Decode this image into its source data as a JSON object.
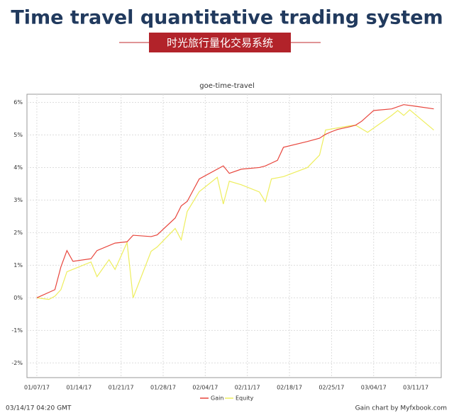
{
  "header": {
    "title": "Time travel quantitative trading system",
    "banner": "时光旅行量化交易系统"
  },
  "chart_data": {
    "type": "line",
    "title": "goe-time-travel",
    "grid": true,
    "legend": "bottom",
    "xlim": [
      "2017-01-05",
      "2017-03-15"
    ],
    "xticks": [
      {
        "value": "2017-01-07",
        "label": "01/07/17"
      },
      {
        "value": "2017-01-14",
        "label": "01/14/17"
      },
      {
        "value": "2017-01-21",
        "label": "01/21/17"
      },
      {
        "value": "2017-01-28",
        "label": "01/28/17"
      },
      {
        "value": "2017-02-04",
        "label": "02/04/17"
      },
      {
        "value": "2017-02-11",
        "label": "02/11/17"
      },
      {
        "value": "2017-02-18",
        "label": "02/18/17"
      },
      {
        "value": "2017-02-25",
        "label": "02/25/17"
      },
      {
        "value": "2017-03-04",
        "label": "03/04/17"
      },
      {
        "value": "2017-03-11",
        "label": "03/11/17"
      }
    ],
    "ylim": [
      -2.45,
      6.25
    ],
    "yticks": [
      {
        "value": -2,
        "label": "-2%"
      },
      {
        "value": -1,
        "label": "-1%"
      },
      {
        "value": 0,
        "label": "0%"
      },
      {
        "value": 1,
        "label": "1%"
      },
      {
        "value": 2,
        "label": "2%"
      },
      {
        "value": 3,
        "label": "3%"
      },
      {
        "value": 4,
        "label": "4%"
      },
      {
        "value": 5,
        "label": "5%"
      },
      {
        "value": 6,
        "label": "6%"
      }
    ],
    "series": [
      {
        "name": "Gain",
        "color": "#e8453c",
        "x": [
          "2017-01-07",
          "2017-01-10",
          "2017-01-11",
          "2017-01-12",
          "2017-01-13",
          "2017-01-16",
          "2017-01-17",
          "2017-01-20",
          "2017-01-22",
          "2017-01-23",
          "2017-01-26",
          "2017-01-27",
          "2017-01-30",
          "2017-01-31",
          "2017-02-01",
          "2017-02-03",
          "2017-02-07",
          "2017-02-08",
          "2017-02-10",
          "2017-02-13",
          "2017-02-14",
          "2017-02-16",
          "2017-02-17",
          "2017-02-21",
          "2017-02-23",
          "2017-02-24",
          "2017-02-25",
          "2017-02-26",
          "2017-02-28",
          "2017-03-01",
          "2017-03-02",
          "2017-03-04",
          "2017-03-07",
          "2017-03-09",
          "2017-03-11",
          "2017-03-14"
        ],
        "values": [
          0,
          0.25,
          0.95,
          1.45,
          1.12,
          1.2,
          1.45,
          1.68,
          1.72,
          1.92,
          1.88,
          1.93,
          2.45,
          2.82,
          2.96,
          3.65,
          4.05,
          3.82,
          3.95,
          4.0,
          4.05,
          4.22,
          4.62,
          4.8,
          4.9,
          5.02,
          5.1,
          5.17,
          5.25,
          5.3,
          5.42,
          5.75,
          5.8,
          5.93,
          5.88,
          5.8
        ]
      },
      {
        "name": "Equity",
        "color": "#eeee5e",
        "x": [
          "2017-01-07",
          "2017-01-09",
          "2017-01-10",
          "2017-01-11",
          "2017-01-12",
          "2017-01-14",
          "2017-01-16",
          "2017-01-17",
          "2017-01-19",
          "2017-01-20",
          "2017-01-22",
          "2017-01-23",
          "2017-01-26",
          "2017-01-27",
          "2017-01-30",
          "2017-01-31",
          "2017-02-01",
          "2017-02-03",
          "2017-02-06",
          "2017-02-07",
          "2017-02-08",
          "2017-02-10",
          "2017-02-13",
          "2017-02-14",
          "2017-02-15",
          "2017-02-17",
          "2017-02-21",
          "2017-02-23",
          "2017-02-24",
          "2017-02-28",
          "2017-03-01",
          "2017-03-03",
          "2017-03-07",
          "2017-03-08",
          "2017-03-09",
          "2017-03-10",
          "2017-03-14"
        ],
        "values": [
          0,
          -0.05,
          0.05,
          0.25,
          0.8,
          0.95,
          1.1,
          0.65,
          1.17,
          0.87,
          1.7,
          0,
          1.43,
          1.56,
          2.13,
          1.78,
          2.65,
          3.26,
          3.7,
          2.88,
          3.58,
          3.47,
          3.25,
          2.95,
          3.65,
          3.72,
          4.0,
          4.38,
          5.15,
          5.28,
          5.3,
          5.08,
          5.6,
          5.75,
          5.6,
          5.77,
          5.15
        ]
      }
    ]
  },
  "footer": {
    "timestamp": "03/14/17 04:20 GMT",
    "credit": "Gain chart by Myfxbook.com"
  }
}
